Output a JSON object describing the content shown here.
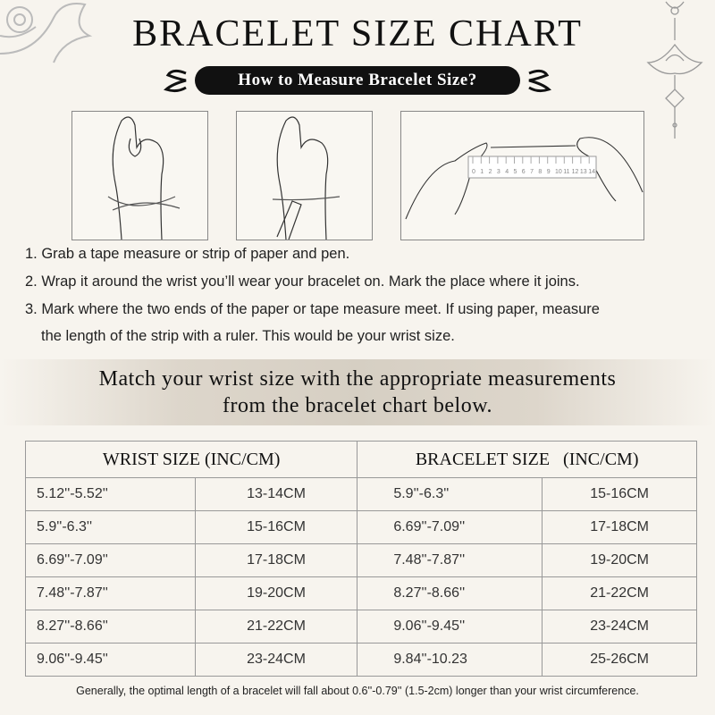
{
  "title": "BRACELET SIZE CHART",
  "subtitle": "How to Measure Bracelet Size?",
  "steps": [
    "1. Grab a tape measure or strip of paper and pen.",
    "2. Wrap it around the wrist you’ll wear your bracelet on. Mark the place where it joins.",
    "3. Mark where the two ends of the paper or tape measure meet. If using paper, measure",
    "the length of the strip with a ruler. This would be your wrist size."
  ],
  "band": {
    "line1": "Match your wrist size with the appropriate measurements",
    "line2": "from the bracelet chart below."
  },
  "ruler_numbers": [
    "0",
    "1",
    "2",
    "3",
    "4",
    "5",
    "6",
    "7",
    "8",
    "9",
    "10",
    "11",
    "12",
    "13",
    "14"
  ],
  "table": {
    "headers": [
      "WRIST SIZE (INC/CM)",
      "BRACELET SIZE   (INC/CM)"
    ],
    "rows": [
      [
        "5.12''-5.52''",
        "13-14CM",
        "5.9''-6.3''",
        "15-16CM"
      ],
      [
        "5.9''-6.3''",
        "15-16CM",
        "6.69''-7.09''",
        "17-18CM"
      ],
      [
        "6.69''-7.09''",
        "17-18CM",
        "7.48''-7.87''",
        "19-20CM"
      ],
      [
        "7.48''-7.87''",
        "19-20CM",
        "8.27''-8.66''",
        "21-22CM"
      ],
      [
        "8.27''-8.66''",
        "21-22CM",
        "9.06''-9.45''",
        "23-24CM"
      ],
      [
        "9.06''-9.45''",
        "23-24CM",
        "9.84''-10.23",
        "25-26CM"
      ]
    ]
  },
  "footnote": "Generally, the optimal length of a bracelet will fall about 0.6''-0.79'' (1.5-2cm) longer than your wrist circumference.",
  "colors": {
    "background": "#f7f4ee",
    "pill": "#111111",
    "band": "#d6cfc3",
    "border": "#999999"
  }
}
